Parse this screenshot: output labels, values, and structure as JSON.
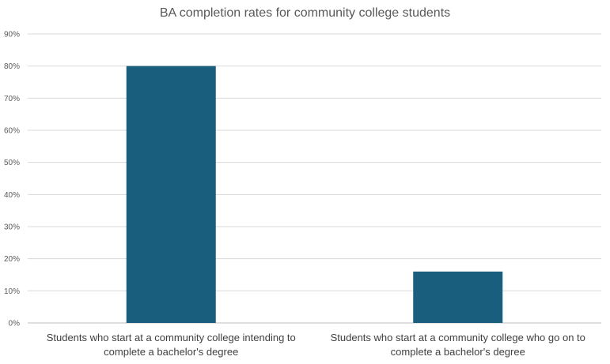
{
  "chart_data": {
    "type": "bar",
    "title": "BA completion rates for community college students",
    "xlabel": "",
    "ylabel": "",
    "categories": [
      "Students who start at a community college intending to complete a bachelor's degree",
      "Students who start at a community college who go on to complete a bachelor's degree"
    ],
    "values": [
      80,
      16
    ],
    "ylim": [
      0,
      90
    ],
    "yticks": [
      "0%",
      "10%",
      "20%",
      "30%",
      "40%",
      "50%",
      "60%",
      "70%",
      "80%",
      "90%"
    ],
    "grid": true,
    "legend": "none",
    "bar_color": "#1a5e7e"
  }
}
